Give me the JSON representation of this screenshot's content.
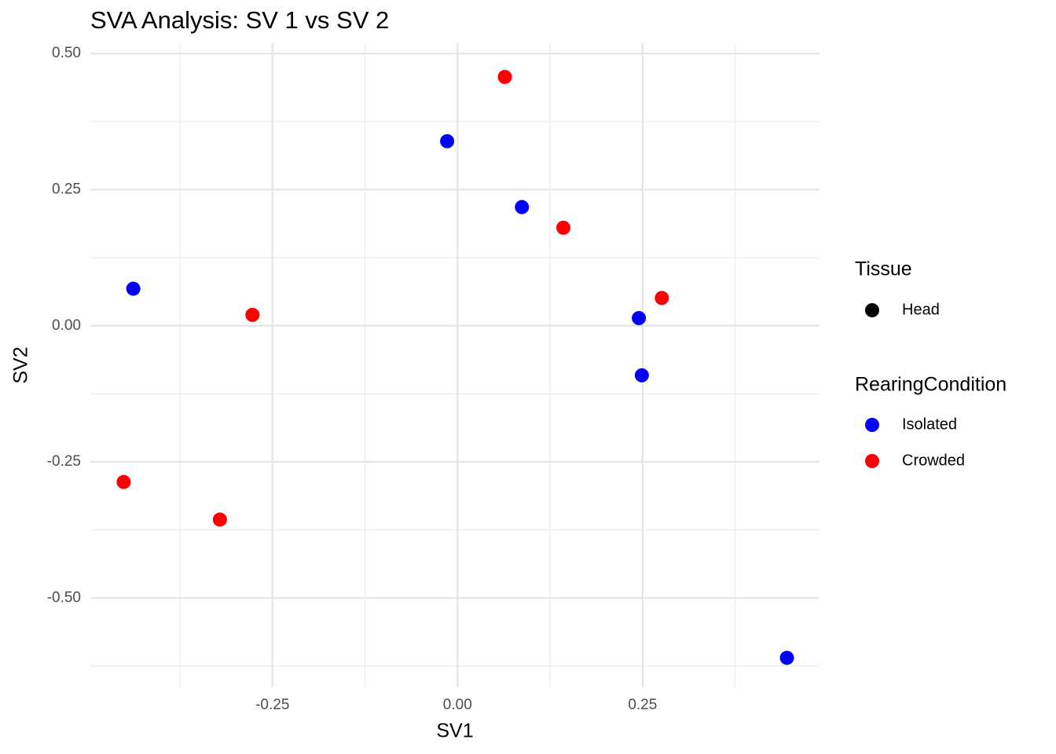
{
  "chart_data": {
    "type": "scatter",
    "title": "SVA Analysis: SV 1  vs SV 2",
    "x_label": "SV1",
    "y_label": "SV2",
    "xlim": [
      -0.496,
      0.489
    ],
    "ylim": [
      -0.664,
      0.519
    ],
    "xticks": [
      {
        "value": -0.25,
        "label": "-0.25"
      },
      {
        "value": 0,
        "label": "0.00"
      },
      {
        "value": 0.25,
        "label": "0.25"
      }
    ],
    "yticks": [
      {
        "value": 0.5,
        "label": "0.50"
      },
      {
        "value": 0.25,
        "label": "0.25"
      },
      {
        "value": 0,
        "label": "0.00"
      },
      {
        "value": -0.25,
        "label": "-0.25"
      },
      {
        "value": -0.5,
        "label": "-0.50"
      }
    ],
    "grid": true,
    "shape_legend": {
      "title": "Tissue",
      "entries": [
        "Head"
      ],
      "color": "#000000"
    },
    "legend_title": "RearingCondition",
    "series": [
      {
        "name": "Isolated",
        "color": "#0000ff",
        "x": [
          -0.438,
          -0.014,
          0.087,
          0.245,
          0.249,
          0.445
        ],
        "values": [
          0.068,
          0.339,
          0.218,
          0.014,
          -0.091,
          -0.61
        ]
      },
      {
        "name": "Crowded",
        "color": "#ff0000",
        "x": [
          0.064,
          0.143,
          0.276,
          -0.277,
          -0.451,
          -0.321
        ],
        "values": [
          0.457,
          0.18,
          0.051,
          0.02,
          -0.287,
          -0.356
        ]
      }
    ]
  }
}
